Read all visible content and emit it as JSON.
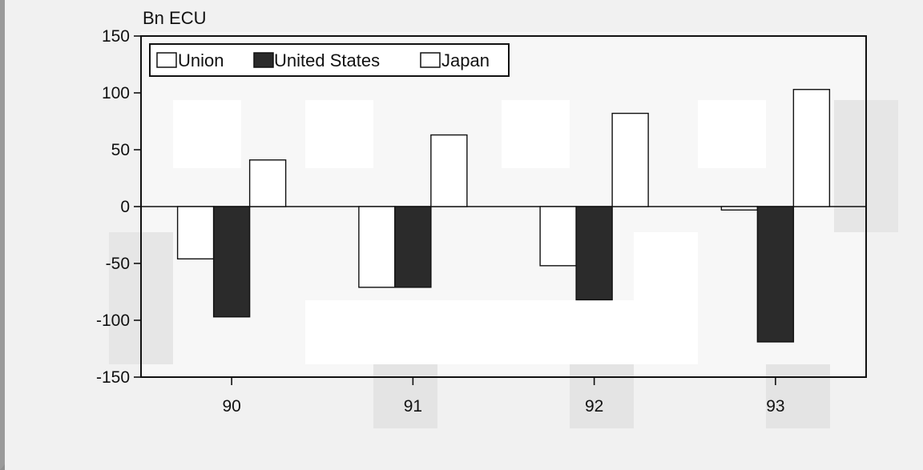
{
  "chart_data": {
    "type": "bar",
    "unit_label": "Bn ECU",
    "categories": [
      "90",
      "91",
      "92",
      "93"
    ],
    "series": [
      {
        "name": "Union",
        "values": [
          -46,
          -71,
          -52,
          -3
        ]
      },
      {
        "name": "United States",
        "values": [
          -97,
          -71,
          -82,
          -119
        ]
      },
      {
        "name": "Japan",
        "values": [
          41,
          63,
          82,
          103
        ]
      }
    ],
    "ylim": [
      -150,
      150
    ],
    "yticks": [
      "150",
      "100",
      "50",
      "0",
      "-50",
      "-100",
      "-150"
    ],
    "legend_position": "top-left",
    "grid": false,
    "colors": {
      "Union": "#ffffff",
      "United States": "#2b2b2b",
      "Japan": "#ffffff"
    }
  }
}
